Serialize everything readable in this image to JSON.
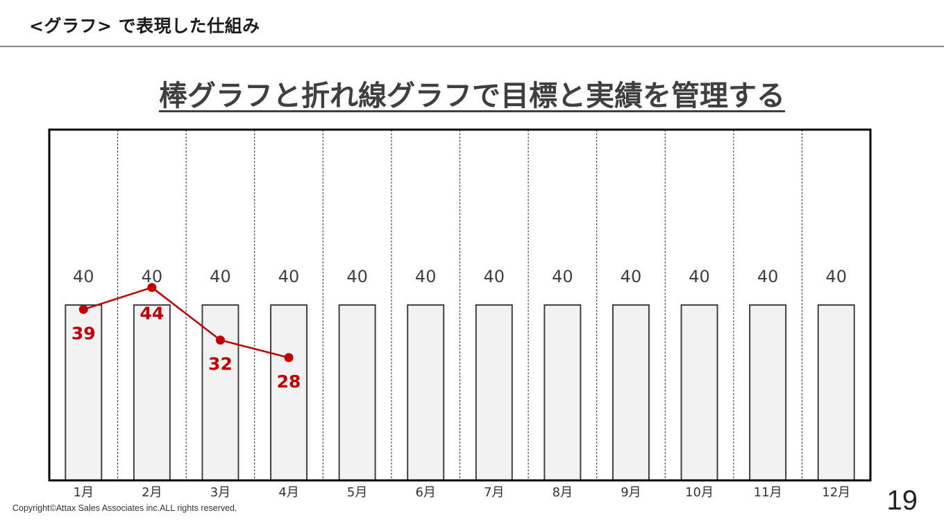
{
  "header": {
    "title": "<グラフ> で表現した仕組み"
  },
  "main_title": "棒グラフと折れ線グラフで目標と実績を管理する",
  "chart_data": {
    "type": "bar",
    "categories": [
      "1月",
      "2月",
      "3月",
      "4月",
      "5月",
      "6月",
      "7月",
      "8月",
      "9月",
      "10月",
      "11月",
      "12月"
    ],
    "series": [
      {
        "type": "bar",
        "values": [
          40,
          40,
          40,
          40,
          40,
          40,
          40,
          40,
          40,
          40,
          40,
          40
        ],
        "color": "#f2f2f2",
        "edge_color": "#404040"
      },
      {
        "type": "line",
        "values": [
          39,
          44,
          32,
          28,
          null,
          null,
          null,
          null,
          null,
          null,
          null,
          null
        ],
        "color": "#c00000"
      }
    ],
    "ylim": [
      0,
      80
    ],
    "grid": "vertical dashed separators",
    "title": "",
    "xlabel": "",
    "ylabel": ""
  },
  "footer": {
    "copyright": "Copyright©Attax Sales Associates inc.ALL rights reserved.",
    "page_number": "19"
  }
}
